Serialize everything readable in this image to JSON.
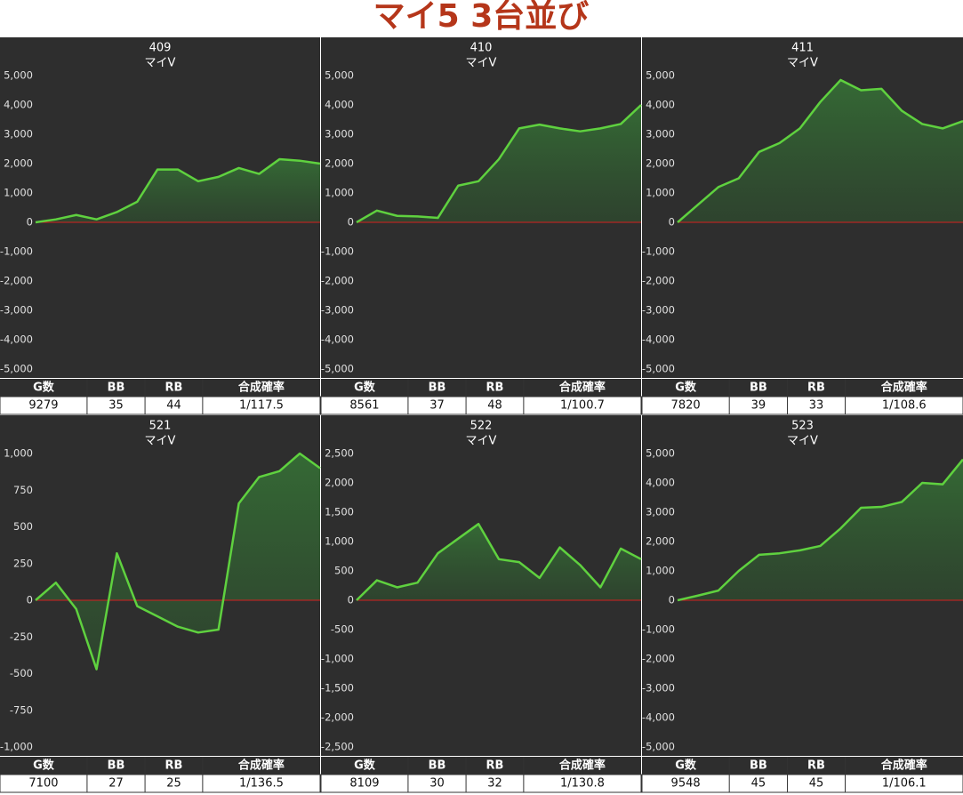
{
  "title": "マイ5 3台並び",
  "chart_data": [
    {
      "type": "line",
      "title": "409",
      "subtitle": "マイV",
      "color": "#5fd13f",
      "zero_color": "#d42020",
      "values": [
        0,
        100,
        250,
        100,
        350,
        700,
        1800,
        1800,
        1400,
        1550,
        1850,
        1650,
        2150,
        2100,
        2000
      ],
      "ylim": [
        -5000,
        5000
      ],
      "yticks": [
        {
          "value": 5000,
          "label": "5,000"
        },
        {
          "value": 4000,
          "label": "4,000"
        },
        {
          "value": 3000,
          "label": "3,000"
        },
        {
          "value": 2000,
          "label": "2,000"
        },
        {
          "value": 1000,
          "label": "1,000"
        },
        0,
        {
          "value": -1000,
          "label": "-1,000"
        },
        {
          "value": -2000,
          "label": "-2,000"
        },
        {
          "value": -3000,
          "label": "-3,000"
        },
        {
          "value": -4000,
          "label": "-4,000"
        },
        {
          "value": -5000,
          "label": "-5,000"
        }
      ]
    },
    {
      "type": "line",
      "title": "410",
      "subtitle": "マイV",
      "color": "#5fd13f",
      "zero_color": "#d42020",
      "values": [
        0,
        400,
        220,
        200,
        150,
        1250,
        1400,
        2150,
        3200,
        3330,
        3200,
        3100,
        3200,
        3350,
        4000
      ],
      "ylim": [
        -5000,
        5000
      ],
      "yticks": [
        {
          "value": 5000,
          "label": "5,000"
        },
        {
          "value": 4000,
          "label": "4,000"
        },
        {
          "value": 3000,
          "label": "3,000"
        },
        {
          "value": 2000,
          "label": "2,000"
        },
        {
          "value": 1000,
          "label": "1,000"
        },
        0,
        {
          "value": -1000,
          "label": "-1,000"
        },
        {
          "value": -2000,
          "label": "-2,000"
        },
        {
          "value": -3000,
          "label": "-3,000"
        },
        {
          "value": -4000,
          "label": "-4,000"
        },
        {
          "value": -5000,
          "label": "-5,000"
        }
      ]
    },
    {
      "type": "line",
      "title": "411",
      "subtitle": "マイV",
      "color": "#5fd13f",
      "zero_color": "#d42020",
      "values": [
        0,
        600,
        1200,
        1500,
        2400,
        2700,
        3200,
        4100,
        4850,
        4500,
        4550,
        3800,
        3350,
        3200,
        3450
      ],
      "ylim": [
        -5000,
        5000
      ],
      "yticks": [
        {
          "value": 5000,
          "label": "5,000"
        },
        {
          "value": 4000,
          "label": "4,000"
        },
        {
          "value": 3000,
          "label": "3,000"
        },
        {
          "value": 2000,
          "label": "2,000"
        },
        {
          "value": 1000,
          "label": "1,000"
        },
        0,
        {
          "value": -1000,
          "label": "-1,000"
        },
        {
          "value": -2000,
          "label": "-2,000"
        },
        {
          "value": -3000,
          "label": "-3,000"
        },
        {
          "value": -4000,
          "label": "-4,000"
        },
        {
          "value": -5000,
          "label": "-5,000"
        }
      ]
    },
    {
      "type": "line",
      "title": "521",
      "subtitle": "マイV",
      "color": "#5fd13f",
      "zero_color": "#d42020",
      "values": [
        0,
        120,
        -60,
        -470,
        320,
        -40,
        -110,
        -180,
        -220,
        -200,
        660,
        840,
        880,
        1000,
        900
      ],
      "ylim": [
        -1000,
        1000
      ],
      "yticks": [
        {
          "value": 1000,
          "label": "1,000"
        },
        750,
        500,
        250,
        0,
        -250,
        -500,
        -750,
        {
          "value": -1000,
          "label": "-1,000"
        }
      ]
    },
    {
      "type": "line",
      "title": "522",
      "subtitle": "マイV",
      "color": "#5fd13f",
      "zero_color": "#d42020",
      "values": [
        0,
        340,
        220,
        300,
        800,
        1050,
        1300,
        700,
        650,
        380,
        900,
        600,
        220,
        880,
        700
      ],
      "ylim": [
        -2500,
        2500
      ],
      "yticks": [
        {
          "value": 2500,
          "label": "2,500"
        },
        {
          "value": 2000,
          "label": "2,000"
        },
        {
          "value": 1500,
          "label": "1,500"
        },
        {
          "value": 1000,
          "label": "1,000"
        },
        500,
        0,
        -500,
        {
          "value": -1000,
          "label": "-1,000"
        },
        {
          "value": -1500,
          "label": "-1,500"
        },
        {
          "value": -2000,
          "label": "-2,000"
        },
        {
          "value": -2500,
          "label": "-2,500"
        }
      ]
    },
    {
      "type": "line",
      "title": "523",
      "subtitle": "マイV",
      "color": "#5fd13f",
      "zero_color": "#d42020",
      "values": [
        0,
        160,
        330,
        1000,
        1550,
        1600,
        1700,
        1850,
        2450,
        3150,
        3180,
        3350,
        4000,
        3950,
        4800
      ],
      "ylim": [
        -5000,
        5000
      ],
      "yticks": [
        {
          "value": 5000,
          "label": "5,000"
        },
        {
          "value": 4000,
          "label": "4,000"
        },
        {
          "value": 3000,
          "label": "3,000"
        },
        {
          "value": 2000,
          "label": "2,000"
        },
        {
          "value": 1000,
          "label": "1,000"
        },
        0,
        {
          "value": -1000,
          "label": "-1,000"
        },
        {
          "value": -2000,
          "label": "-2,000"
        },
        {
          "value": -3000,
          "label": "-3,000"
        },
        {
          "value": -4000,
          "label": "-4,000"
        },
        {
          "value": -5000,
          "label": "-5,000"
        }
      ]
    }
  ],
  "tables": [
    {
      "header": [
        "G数",
        "BB",
        "RB",
        "合成確率"
      ],
      "row": [
        9279,
        35,
        44,
        "1/117.5"
      ]
    },
    {
      "header": [
        "G数",
        "BB",
        "RB",
        "合成確率"
      ],
      "row": [
        8561,
        37,
        48,
        "1/100.7"
      ]
    },
    {
      "header": [
        "G数",
        "BB",
        "RB",
        "合成確率"
      ],
      "row": [
        7820,
        39,
        33,
        "1/108.6"
      ]
    },
    {
      "header": [
        "G数",
        "BB",
        "RB",
        "合成確率"
      ],
      "row": [
        7100,
        27,
        25,
        "1/136.5"
      ]
    },
    {
      "header": [
        "G数",
        "BB",
        "RB",
        "合成確率"
      ],
      "row": [
        8109,
        30,
        32,
        "1/130.8"
      ]
    },
    {
      "header": [
        "G数",
        "BB",
        "RB",
        "合成確率"
      ],
      "row": [
        9548,
        45,
        45,
        "1/106.1"
      ]
    }
  ]
}
